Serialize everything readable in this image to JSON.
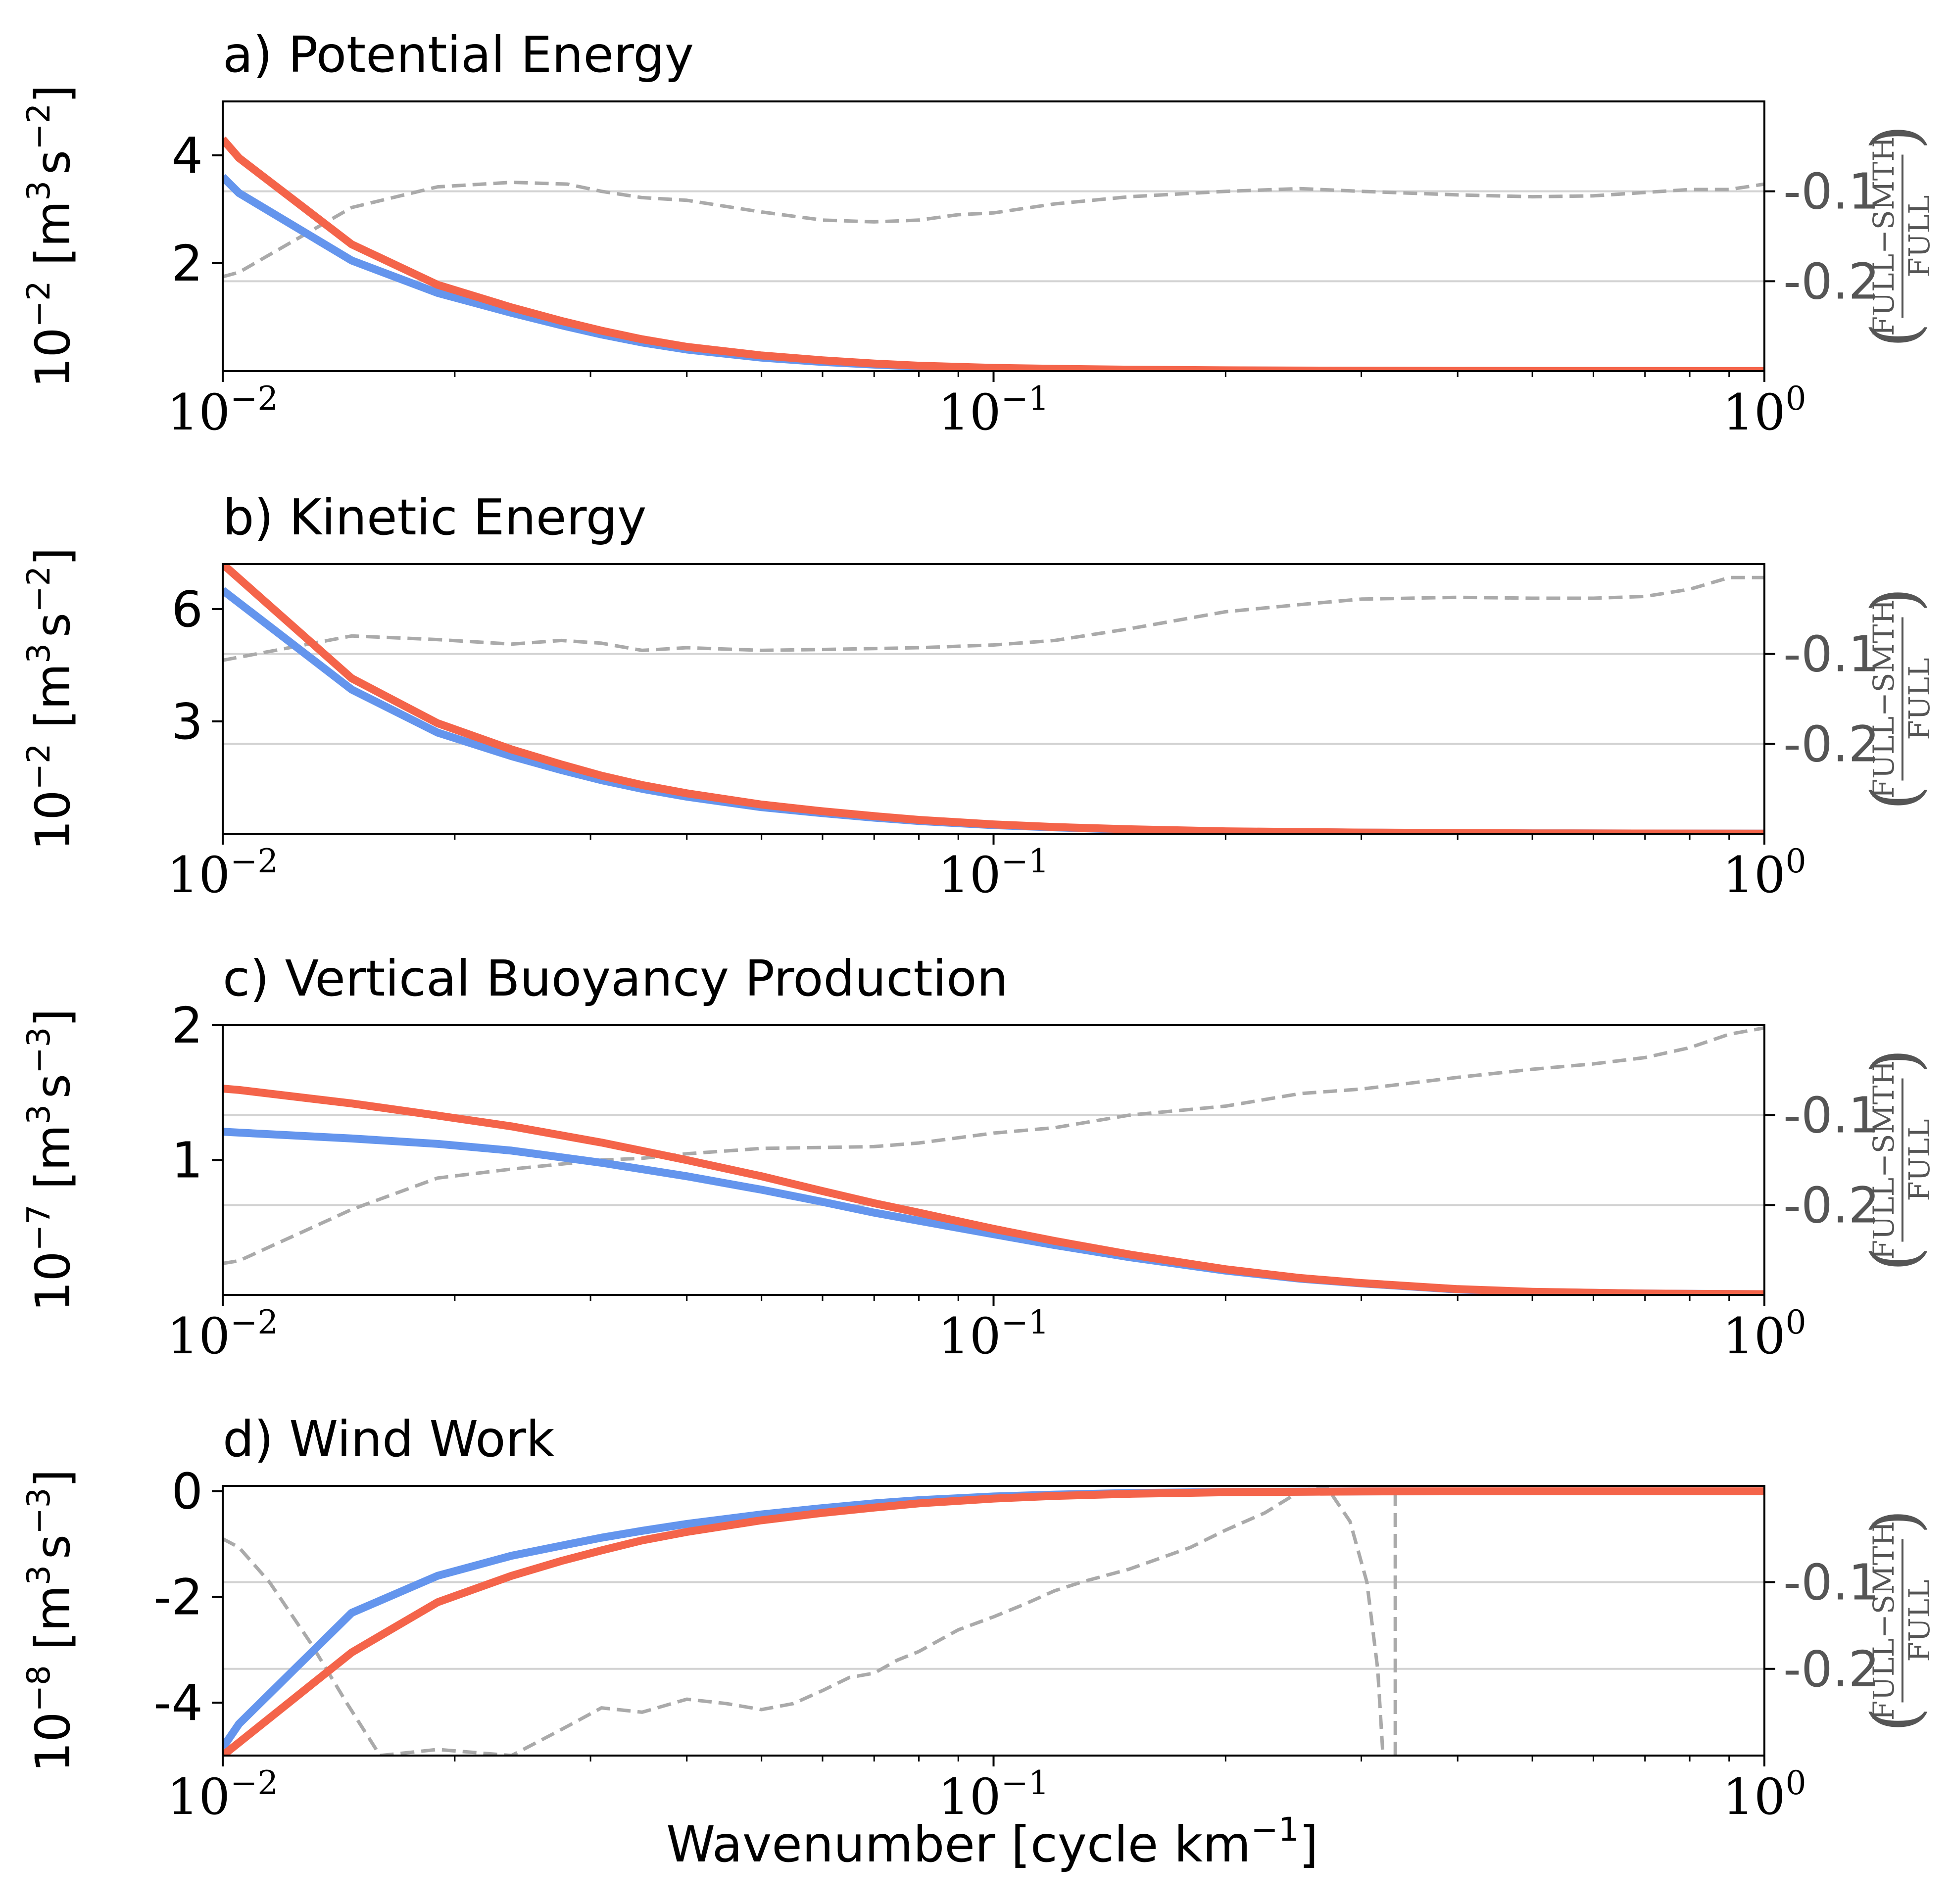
{
  "colors": {
    "full": "#f4644a",
    "smooth": "#6495ed",
    "ratio": "#aaaaaa",
    "grid": "#d3d3d3",
    "axis": "#000000",
    "right_axis_text": "#555555"
  },
  "xlabel": "Wavenumber [cycle km",
  "xlabel_exp": "−1",
  "xlabel_close": "]",
  "x_ticks": [
    {
      "value": 0.01,
      "base": "10",
      "exp": "−2"
    },
    {
      "value": 0.1,
      "base": "10",
      "exp": "−1"
    },
    {
      "value": 1,
      "base": "10",
      "exp": "0"
    }
  ],
  "chart_data": [
    {
      "type": "line",
      "title": "a) Potential Energy",
      "ylabel": {
        "prefix": "10",
        "prefix_exp": "−2",
        "unit": " [m",
        "unit_exp1": "3",
        "unit_mid": "s",
        "unit_exp2": "−2",
        "close": "]"
      },
      "xscale": "log",
      "xlim": [
        0.01,
        1
      ],
      "ylim": [
        0,
        5
      ],
      "yticks": [
        2,
        4
      ],
      "ytick_labels": [
        "2",
        "4"
      ],
      "right_label": {
        "open": "(",
        "num": "FULL−SMTH",
        "den": "FULL",
        "close": ")"
      },
      "right_ylim": [
        -0.3,
        0
      ],
      "right_ticks": [
        -0.2,
        -0.1
      ],
      "right_tick_labels": [
        "-0.2",
        "-0.1"
      ],
      "grid_right": true,
      "series": [
        {
          "role": "smooth",
          "x": [
            0.01,
            0.0105,
            0.0147,
            0.019,
            0.0237,
            0.0275,
            0.031,
            0.035,
            0.04,
            0.05,
            0.06,
            0.07,
            0.08,
            0.1,
            0.12,
            0.15,
            0.2,
            0.3,
            0.5,
            1
          ],
          "y": [
            3.6,
            3.3,
            2.05,
            1.45,
            1.08,
            0.85,
            0.68,
            0.53,
            0.4,
            0.25,
            0.17,
            0.12,
            0.085,
            0.05,
            0.035,
            0.022,
            0.012,
            0.006,
            0.002,
            0.001
          ]
        },
        {
          "role": "full",
          "x": [
            0.01,
            0.0105,
            0.0147,
            0.019,
            0.0237,
            0.0275,
            0.031,
            0.035,
            0.04,
            0.05,
            0.06,
            0.07,
            0.08,
            0.1,
            0.12,
            0.15,
            0.2,
            0.3,
            0.5,
            1
          ],
          "y": [
            4.3,
            3.95,
            2.35,
            1.6,
            1.18,
            0.93,
            0.75,
            0.59,
            0.45,
            0.29,
            0.2,
            0.14,
            0.1,
            0.06,
            0.042,
            0.027,
            0.015,
            0.007,
            0.003,
            0.001
          ]
        },
        {
          "role": "ratio",
          "x": [
            0.01,
            0.0105,
            0.0147,
            0.019,
            0.0237,
            0.028,
            0.031,
            0.035,
            0.04,
            0.05,
            0.06,
            0.07,
            0.08,
            0.09,
            0.1,
            0.12,
            0.15,
            0.2,
            0.25,
            0.3,
            0.4,
            0.5,
            0.6,
            0.8,
            0.9,
            1
          ],
          "y": [
            -0.195,
            -0.19,
            -0.118,
            -0.095,
            -0.09,
            -0.092,
            -0.1,
            -0.107,
            -0.11,
            -0.123,
            -0.132,
            -0.134,
            -0.132,
            -0.126,
            -0.124,
            -0.114,
            -0.106,
            -0.1,
            -0.097,
            -0.1,
            -0.104,
            -0.106,
            -0.105,
            -0.098,
            -0.098,
            -0.092
          ]
        }
      ]
    },
    {
      "type": "line",
      "title": "b) Kinetic Energy",
      "ylabel": {
        "prefix": "10",
        "prefix_exp": "−2",
        "unit": " [m",
        "unit_exp1": "3",
        "unit_mid": "s",
        "unit_exp2": "−2",
        "close": "]"
      },
      "xscale": "log",
      "xlim": [
        0.01,
        1
      ],
      "ylim": [
        0,
        7.2
      ],
      "yticks": [
        3,
        6
      ],
      "ytick_labels": [
        "3",
        "6"
      ],
      "right_label": {
        "open": "(",
        "num": "FULL−SMTH",
        "den": "FULL",
        "close": ")"
      },
      "right_ylim": [
        -0.3,
        0
      ],
      "right_ticks": [
        -0.2,
        -0.1
      ],
      "right_tick_labels": [
        "-0.2",
        "-0.1"
      ],
      "grid_right": true,
      "series": [
        {
          "role": "smooth",
          "x": [
            0.01,
            0.0147,
            0.019,
            0.0237,
            0.0275,
            0.031,
            0.035,
            0.04,
            0.05,
            0.06,
            0.07,
            0.08,
            0.1,
            0.12,
            0.15,
            0.2,
            0.3,
            0.5,
            1
          ],
          "y": [
            6.5,
            3.85,
            2.7,
            2.07,
            1.7,
            1.43,
            1.2,
            0.99,
            0.71,
            0.55,
            0.43,
            0.34,
            0.23,
            0.17,
            0.11,
            0.06,
            0.03,
            0.01,
            0.003
          ]
        },
        {
          "role": "full",
          "x": [
            0.01,
            0.0147,
            0.019,
            0.0237,
            0.0275,
            0.031,
            0.035,
            0.04,
            0.05,
            0.06,
            0.07,
            0.08,
            0.1,
            0.12,
            0.15,
            0.2,
            0.3,
            0.5,
            1
          ],
          "y": [
            7.2,
            4.15,
            2.95,
            2.25,
            1.85,
            1.55,
            1.3,
            1.08,
            0.78,
            0.6,
            0.47,
            0.37,
            0.25,
            0.18,
            0.12,
            0.065,
            0.032,
            0.011,
            0.003
          ]
        },
        {
          "role": "ratio",
          "x": [
            0.01,
            0.0147,
            0.019,
            0.0237,
            0.0275,
            0.031,
            0.035,
            0.04,
            0.05,
            0.06,
            0.07,
            0.08,
            0.1,
            0.12,
            0.15,
            0.2,
            0.25,
            0.3,
            0.4,
            0.5,
            0.6,
            0.7,
            0.8,
            0.9,
            1
          ],
          "y": [
            -0.107,
            -0.08,
            -0.084,
            -0.089,
            -0.085,
            -0.088,
            -0.096,
            -0.093,
            -0.096,
            -0.095,
            -0.094,
            -0.093,
            -0.09,
            -0.085,
            -0.072,
            -0.053,
            -0.045,
            -0.039,
            -0.037,
            -0.038,
            -0.038,
            -0.036,
            -0.028,
            -0.015,
            -0.015
          ]
        }
      ]
    },
    {
      "type": "line",
      "title": "c) Vertical Buoyancy Production",
      "ylabel": {
        "prefix": "10",
        "prefix_exp": "−7",
        "unit": " [m",
        "unit_exp1": "3",
        "unit_mid": "s",
        "unit_exp2": "−3",
        "close": "]"
      },
      "xscale": "log",
      "xlim": [
        0.01,
        1
      ],
      "ylim": [
        0,
        2
      ],
      "yticks": [
        1,
        2
      ],
      "ytick_labels": [
        "1",
        "2"
      ],
      "right_label": {
        "open": "(",
        "num": "FULL−SMTH",
        "den": "FULL",
        "close": ")"
      },
      "right_ylim": [
        -0.3,
        0
      ],
      "right_ticks": [
        -0.2,
        -0.1
      ],
      "right_tick_labels": [
        "-0.2",
        "-0.1"
      ],
      "grid_right": true,
      "series": [
        {
          "role": "smooth",
          "x": [
            0.01,
            0.0147,
            0.019,
            0.0237,
            0.031,
            0.04,
            0.05,
            0.06,
            0.07,
            0.08,
            0.1,
            0.12,
            0.15,
            0.2,
            0.25,
            0.3,
            0.4,
            0.5,
            0.7,
            1
          ],
          "y": [
            1.21,
            1.16,
            1.12,
            1.07,
            0.98,
            0.88,
            0.78,
            0.69,
            0.61,
            0.55,
            0.45,
            0.37,
            0.28,
            0.18,
            0.12,
            0.085,
            0.04,
            0.022,
            0.01,
            0.005
          ]
        },
        {
          "role": "full",
          "x": [
            0.01,
            0.0105,
            0.0147,
            0.019,
            0.0237,
            0.031,
            0.04,
            0.05,
            0.06,
            0.07,
            0.08,
            0.1,
            0.12,
            0.15,
            0.2,
            0.25,
            0.3,
            0.4,
            0.5,
            0.7,
            1
          ],
          "y": [
            1.53,
            1.52,
            1.42,
            1.33,
            1.25,
            1.13,
            1.0,
            0.88,
            0.77,
            0.68,
            0.61,
            0.49,
            0.4,
            0.3,
            0.19,
            0.125,
            0.088,
            0.043,
            0.023,
            0.01,
            0.005
          ]
        },
        {
          "role": "ratio",
          "x": [
            0.01,
            0.0105,
            0.0147,
            0.019,
            0.0237,
            0.031,
            0.035,
            0.04,
            0.05,
            0.06,
            0.07,
            0.08,
            0.1,
            0.12,
            0.15,
            0.2,
            0.25,
            0.3,
            0.4,
            0.5,
            0.6,
            0.7,
            0.8,
            0.9,
            1
          ],
          "y": [
            -0.265,
            -0.262,
            -0.205,
            -0.17,
            -0.16,
            -0.15,
            -0.148,
            -0.143,
            -0.137,
            -0.136,
            -0.135,
            -0.131,
            -0.12,
            -0.114,
            -0.1,
            -0.09,
            -0.076,
            -0.071,
            -0.058,
            -0.049,
            -0.043,
            -0.036,
            -0.025,
            -0.01,
            -0.003
          ]
        }
      ]
    },
    {
      "type": "line",
      "title": "d) Wind Work",
      "ylabel": {
        "prefix": "10",
        "prefix_exp": "−8",
        "unit": " [m",
        "unit_exp1": "3",
        "unit_mid": "s",
        "unit_exp2": "−3",
        "close": "]"
      },
      "xscale": "log",
      "xlim": [
        0.01,
        1
      ],
      "ylim": [
        -5,
        0.1
      ],
      "yticks": [
        -4,
        -2,
        0
      ],
      "ytick_labels": [
        "-4",
        "-2",
        "0"
      ],
      "right_label": {
        "open": "(",
        "num": "FULL−SMTH",
        "den": "FULL",
        "close": ")"
      },
      "right_ylim": [
        -0.3,
        0.011
      ],
      "right_ticks": [
        -0.2,
        -0.1
      ],
      "right_tick_labels": [
        "-0.2",
        "-0.1"
      ],
      "grid_right": true,
      "series": [
        {
          "role": "smooth",
          "x": [
            0.01,
            0.0105,
            0.0147,
            0.019,
            0.0237,
            0.0275,
            0.031,
            0.035,
            0.04,
            0.05,
            0.06,
            0.07,
            0.08,
            0.1,
            0.12,
            0.15,
            0.2,
            0.3,
            0.5,
            1
          ],
          "y": [
            -4.85,
            -4.4,
            -2.3,
            -1.6,
            -1.22,
            -1.03,
            -0.88,
            -0.75,
            -0.62,
            -0.44,
            -0.32,
            -0.23,
            -0.17,
            -0.1,
            -0.065,
            -0.035,
            -0.015,
            -0.004,
            -0.001,
            0
          ]
        },
        {
          "role": "full",
          "x": [
            0.01,
            0.0147,
            0.019,
            0.0237,
            0.0275,
            0.031,
            0.035,
            0.04,
            0.05,
            0.06,
            0.07,
            0.08,
            0.1,
            0.12,
            0.15,
            0.2,
            0.3,
            0.5,
            1
          ],
          "y": [
            -5.0,
            -3.05,
            -2.1,
            -1.6,
            -1.32,
            -1.12,
            -0.93,
            -0.77,
            -0.55,
            -0.41,
            -0.31,
            -0.23,
            -0.14,
            -0.09,
            -0.05,
            -0.02,
            -0.005,
            -0.001,
            0
          ]
        },
        {
          "role": "ratio",
          "x": [
            0.01,
            0.0105,
            0.0115,
            0.013,
            0.0145,
            0.016,
            0.019,
            0.0237,
            0.0275,
            0.031,
            0.035,
            0.04,
            0.045,
            0.05,
            0.055,
            0.06,
            0.065,
            0.07,
            0.075,
            0.08,
            0.09,
            0.1,
            0.11,
            0.12,
            0.13,
            0.15,
            0.18,
            0.2,
            0.225,
            0.25,
            0.27,
            0.29,
            0.305,
            0.315,
            0.32
          ],
          "y": [
            -0.05,
            -0.06,
            -0.1,
            -0.17,
            -0.24,
            -0.3,
            -0.293,
            -0.3,
            -0.27,
            -0.245,
            -0.25,
            -0.235,
            -0.24,
            -0.247,
            -0.24,
            -0.225,
            -0.21,
            -0.205,
            -0.19,
            -0.18,
            -0.155,
            -0.14,
            -0.125,
            -0.11,
            -0.1,
            -0.085,
            -0.06,
            -0.04,
            -0.02,
            0.005,
            0.011,
            -0.03,
            -0.1,
            -0.2,
            -0.3
          ]
        },
        {
          "role": "ratio",
          "x": [
            0.332,
            0.332
          ],
          "y": [
            -0.3,
            0.011
          ]
        }
      ]
    }
  ]
}
